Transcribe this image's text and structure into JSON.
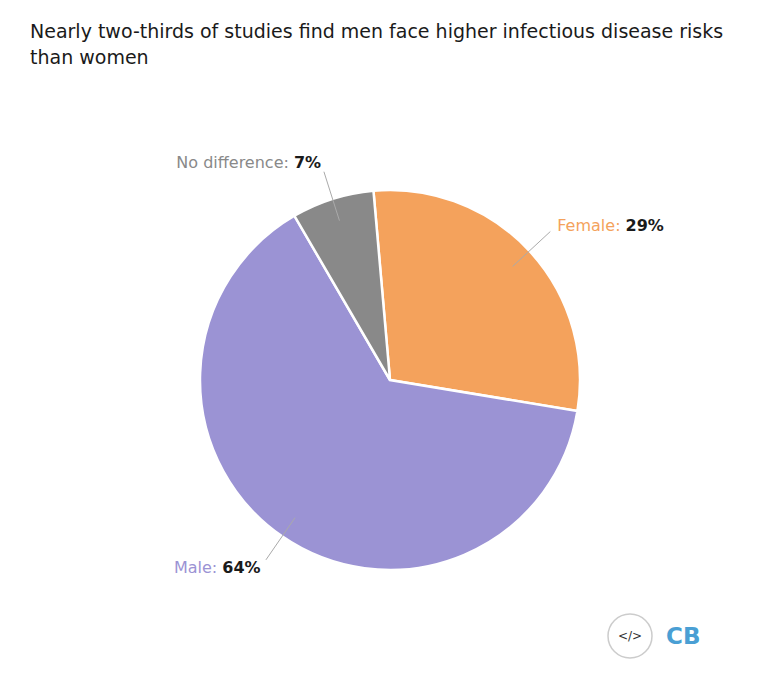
{
  "chart_data": {
    "type": "pie",
    "title": "Nearly two-thirds of studies find men face higher infectious disease risks than women",
    "categories": [
      "Female:",
      "Male:",
      "No difference:"
    ],
    "values": [
      29,
      64,
      7
    ],
    "value_labels": [
      "29%",
      "64%",
      "7%"
    ],
    "colors": [
      "#f4a25c",
      "#9b93d4",
      "#898989"
    ],
    "data_labels": true,
    "legend": false,
    "annotations": [
      "</>",
      "CB"
    ]
  }
}
